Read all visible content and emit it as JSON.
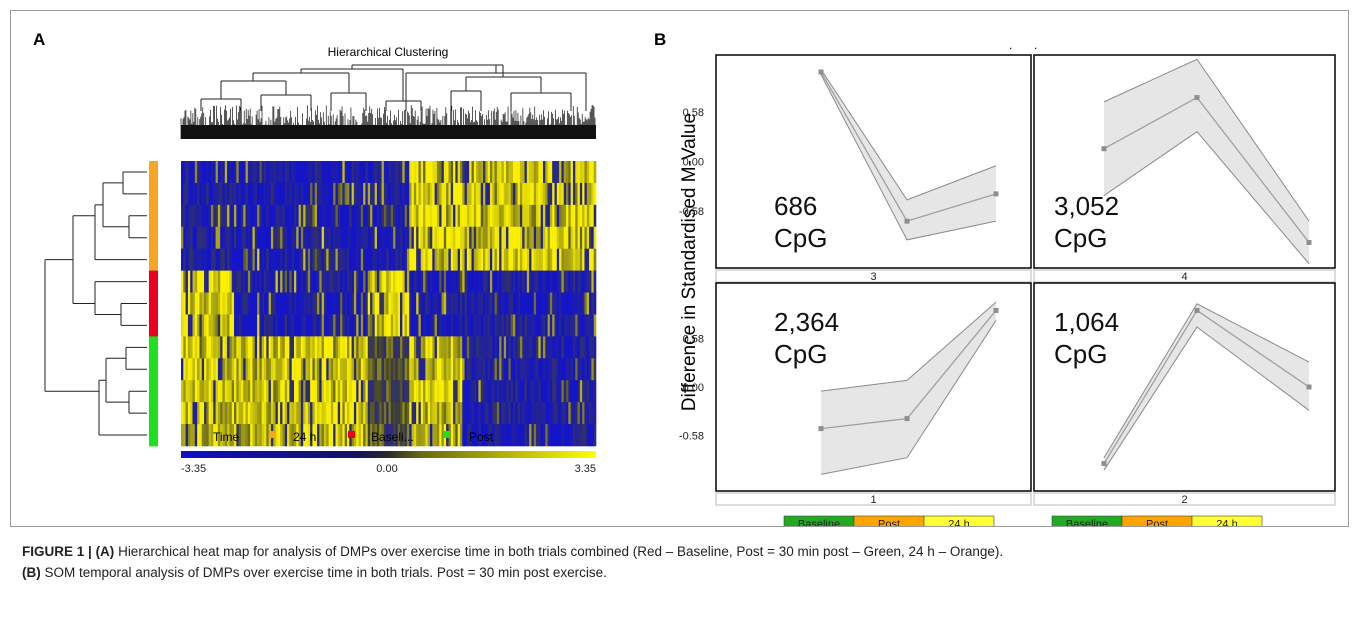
{
  "chart_data": [
    {
      "type": "heatmap",
      "panel_label": "A",
      "title": "Hierarchical Clustering",
      "rows": [
        {
          "group": "24 h"
        },
        {
          "group": "24 h"
        },
        {
          "group": "24 h"
        },
        {
          "group": "24 h"
        },
        {
          "group": "24 h"
        },
        {
          "group": "Baseline"
        },
        {
          "group": "Baseline"
        },
        {
          "group": "Baseline"
        },
        {
          "group": "Post"
        },
        {
          "group": "Post"
        },
        {
          "group": "Post"
        },
        {
          "group": "Post"
        },
        {
          "group": "Post"
        }
      ],
      "column_blocks": [
        {
          "label": "block-1",
          "span": [
            0,
            0.13
          ],
          "pattern": {
            "24 h": -1,
            "Baseline": 1,
            "Post": 1
          }
        },
        {
          "label": "block-2",
          "span": [
            0.13,
            0.45
          ],
          "pattern": {
            "24 h": -1,
            "Baseline": -1,
            "Post": 1
          }
        },
        {
          "label": "block-3",
          "span": [
            0.45,
            0.55
          ],
          "pattern": {
            "24 h": -1,
            "Baseline": 1,
            "Post": 0
          }
        },
        {
          "label": "block-4",
          "span": [
            0.55,
            0.68
          ],
          "pattern": {
            "24 h": 1,
            "Baseline": -1,
            "Post": 1
          }
        },
        {
          "label": "block-5",
          "span": [
            0.68,
            1.0
          ],
          "pattern": {
            "24 h": 1,
            "Baseline": -1,
            "Post": -1
          }
        }
      ],
      "legend": {
        "title": "Time",
        "items": [
          {
            "label": "24 h",
            "color": "#f5a623"
          },
          {
            "label": "Baseli...",
            "color": "#e8001c"
          },
          {
            "label": "Post",
            "color": "#1fe01f"
          }
        ]
      },
      "color_scale": {
        "min": -3.35,
        "mid": 0.0,
        "max": 3.35,
        "low_color": "#1010c8",
        "mid_color": "#2a2a2a",
        "high_color": "#ffff00"
      },
      "colorbar_labels": [
        "-3.35",
        "0.00",
        "3.35"
      ]
    },
    {
      "type": "line",
      "panel_label": "B",
      "ylabel": "Difference in Standardised M-Value",
      "yticks": [
        0.58,
        0.0,
        -0.58
      ],
      "ytick_labels": [
        "0.58",
        "0.00",
        "-0.58"
      ],
      "ylim": [
        -1.25,
        1.25
      ],
      "x": [
        "Baseline",
        "Post",
        "24 h"
      ],
      "x_legend_colors": [
        "#22aa22",
        "#ffa500",
        "#ffff33"
      ],
      "panels": [
        {
          "id": "3",
          "count_label": "686",
          "unit": "CpG",
          "count_color": "#111111",
          "mean": [
            1.05,
            -0.7,
            -0.38
          ],
          "upper": [
            1.08,
            -0.45,
            -0.05
          ],
          "lower": [
            1.02,
            -0.92,
            -0.7
          ]
        },
        {
          "id": "4",
          "count_label": "3,052",
          "unit": "CpG",
          "count_color": "#e00000",
          "mean": [
            0.15,
            0.75,
            -0.95
          ],
          "upper": [
            0.7,
            1.2,
            -0.7
          ],
          "lower": [
            -0.4,
            0.35,
            -1.2
          ]
        },
        {
          "id": "1",
          "count_label": "2,364",
          "unit": "CpG",
          "count_color": "#111111",
          "mean": [
            -0.5,
            -0.38,
            0.92
          ],
          "upper": [
            -0.05,
            0.08,
            1.02
          ],
          "lower": [
            -1.05,
            -0.85,
            0.8
          ]
        },
        {
          "id": "2",
          "count_label": "1,064",
          "unit": "CpG",
          "count_color": "#111111",
          "mean": [
            -0.92,
            0.92,
            0.0
          ],
          "upper": [
            -0.85,
            1.0,
            0.3
          ],
          "lower": [
            -1.0,
            0.72,
            -0.28
          ]
        }
      ]
    }
  ],
  "figure": {
    "top_dots": [
      ".",
      "."
    ]
  },
  "caption": {
    "label": "FIGURE 1 |",
    "a_tag": "(A)",
    "a_text": " Hierarchical heat map for analysis of DMPs over exercise time in both trials combined (Red – Baseline, Post = 30 min post – Green, 24 h – Orange).",
    "b_tag": "(B)",
    "b_text": " SOM temporal analysis of DMPs over exercise time in both trials. Post = 30 min post exercise."
  }
}
